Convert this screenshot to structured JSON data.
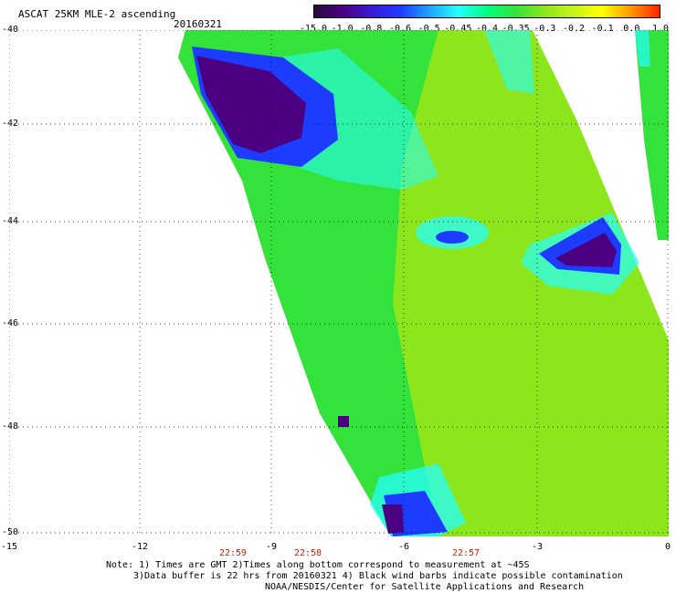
{
  "header": {
    "title": "ASCAT 25KM MLE-2 ascending",
    "date": "20160321"
  },
  "colorbar": {
    "labels": [
      "-15.0",
      "-1.0",
      "-0.8",
      "-0.6",
      "-0.5",
      "-0.45",
      "-0.4",
      "-0.35",
      "-0.3",
      "-0.2",
      "-0.1",
      "0.0",
      "1.0"
    ],
    "colors": [
      "#2a0a3c",
      "#4b0082",
      "#3a1bd6",
      "#1e3cff",
      "#1fa3ff",
      "#24ffff",
      "#00ff7f",
      "#34e23c",
      "#8de61c",
      "#c8f21c",
      "#ffff00",
      "#ff9900",
      "#ff2200"
    ]
  },
  "axes": {
    "y_labels": [
      "-40",
      "-42",
      "-44",
      "-46",
      "-48",
      "-50"
    ],
    "x_labels": [
      "-15",
      "-12",
      "-9",
      "-6",
      "-3",
      "0"
    ]
  },
  "times": [
    "22:59",
    "22:58",
    "22:57"
  ],
  "notes": {
    "line1": "Note: 1) Times are GMT 2)Times along bottom correspond to measurement at ~45S",
    "line2": "3)Data buffer is 22 hrs from 20160321 4) Black wind barbs indicate possible contamination",
    "line3": "NOAA/NESDIS/Center for Satellite Applications and Research"
  }
}
